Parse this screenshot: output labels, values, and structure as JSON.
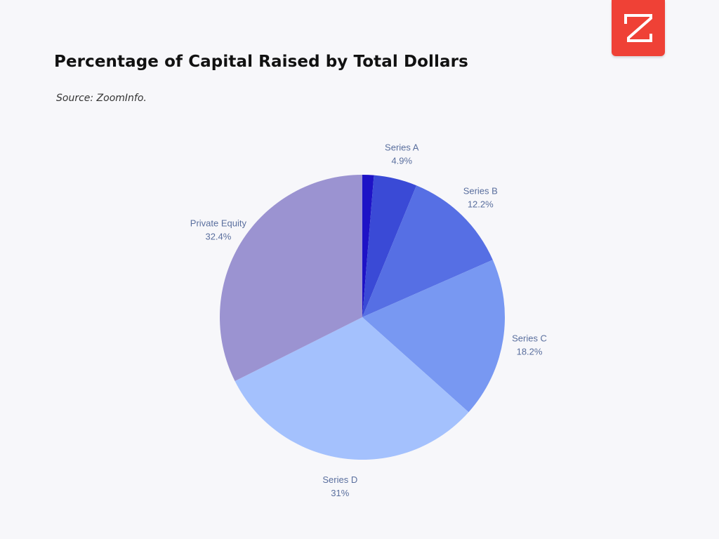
{
  "page": {
    "title": "Percentage of Capital Raised by Total Dollars",
    "source": "Source: ZoomInfo.",
    "logo_color": "#ef4136"
  },
  "chart_data": {
    "type": "pie",
    "title": "Percentage of Capital Raised by Total Dollars",
    "slices": [
      {
        "label": "",
        "value": 1.3,
        "display": "",
        "color": "#1e13c6"
      },
      {
        "label": "Series A",
        "value": 4.9,
        "display": "4.9%",
        "color": "#3a4ad6"
      },
      {
        "label": "Series B",
        "value": 12.2,
        "display": "12.2%",
        "color": "#566fe4"
      },
      {
        "label": "Series C",
        "value": 18.2,
        "display": "18.2%",
        "color": "#7898f2"
      },
      {
        "label": "Series D",
        "value": 31,
        "display": "31%",
        "color": "#a4c1fd"
      },
      {
        "label": "Private Equity",
        "value": 32.4,
        "display": "32.4%",
        "color": "#9b93d1"
      }
    ],
    "start": "12 o'clock",
    "direction": "clockwise",
    "legend": "none",
    "labels": "outside"
  }
}
